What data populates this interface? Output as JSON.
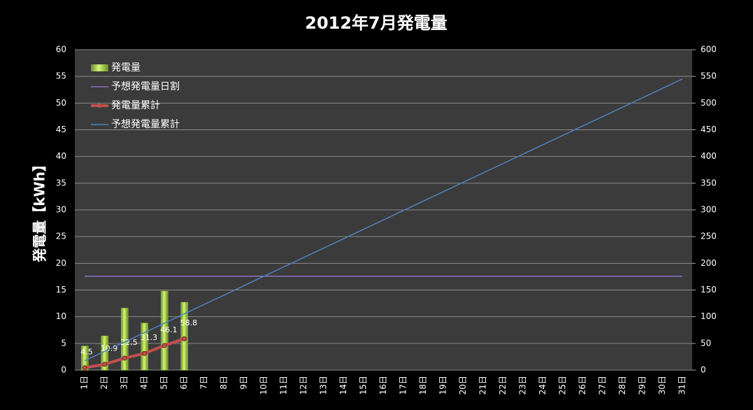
{
  "chart_data": {
    "type": "combo",
    "title": "2012年7月発電量",
    "y_label": "発電量【kWh】",
    "categories": [
      "1日",
      "2日",
      "3日",
      "4日",
      "5日",
      "6日",
      "7日",
      "8日",
      "9日",
      "10日",
      "11日",
      "12日",
      "13日",
      "14日",
      "15日",
      "16日",
      "17日",
      "18日",
      "19日",
      "20日",
      "21日",
      "22日",
      "23日",
      "24日",
      "25日",
      "26日",
      "27日",
      "28日",
      "29日",
      "30日",
      "31日"
    ],
    "ylim": [
      0,
      60
    ],
    "yticks": [
      0,
      5,
      10,
      15,
      20,
      25,
      30,
      35,
      40,
      45,
      50,
      55,
      60
    ],
    "y2lim": [
      0,
      600
    ],
    "y2ticks": [
      0,
      50,
      100,
      150,
      200,
      250,
      300,
      350,
      400,
      450,
      500,
      550,
      600
    ],
    "grid": true,
    "legend": "top-left",
    "series": [
      {
        "name": "発電量",
        "type": "bar",
        "color": "#9acd32",
        "values": [
          4.5,
          6.4,
          11.6,
          8.8,
          14.8,
          12.7,
          null,
          null,
          null,
          null,
          null,
          null,
          null,
          null,
          null,
          null,
          null,
          null,
          null,
          null,
          null,
          null,
          null,
          null,
          null,
          null,
          null,
          null,
          null,
          null,
          null
        ]
      },
      {
        "name": "予想発電量日割",
        "type": "line",
        "color": "#8e6fc4",
        "values": [
          17.58,
          17.58,
          17.58,
          17.58,
          17.58,
          17.58,
          17.58,
          17.58,
          17.58,
          17.58,
          17.58,
          17.58,
          17.58,
          17.58,
          17.58,
          17.58,
          17.58,
          17.58,
          17.58,
          17.58,
          17.58,
          17.58,
          17.58,
          17.58,
          17.58,
          17.58,
          17.58,
          17.58,
          17.58,
          17.58,
          17.58
        ]
      },
      {
        "name": "発電量累計",
        "type": "line",
        "axis": "y2",
        "color": "#c0504d",
        "labels": true,
        "values": [
          4.5,
          10.9,
          22.5,
          31.3,
          46.1,
          58.8,
          null,
          null,
          null,
          null,
          null,
          null,
          null,
          null,
          null,
          null,
          null,
          null,
          null,
          null,
          null,
          null,
          null,
          null,
          null,
          null,
          null,
          null,
          null,
          null,
          null
        ]
      },
      {
        "name": "予想発電量累計",
        "type": "line",
        "axis": "y2",
        "color": "#4f81bd",
        "values": [
          17.6,
          35.2,
          52.7,
          70.3,
          87.9,
          105.5,
          123.1,
          140.6,
          158.2,
          175.8,
          193.4,
          211.0,
          228.5,
          246.1,
          263.7,
          281.3,
          298.9,
          316.4,
          334.0,
          351.6,
          369.2,
          386.8,
          404.3,
          421.9,
          439.5,
          457.1,
          474.7,
          492.2,
          509.8,
          527.4,
          545.0
        ]
      }
    ]
  }
}
